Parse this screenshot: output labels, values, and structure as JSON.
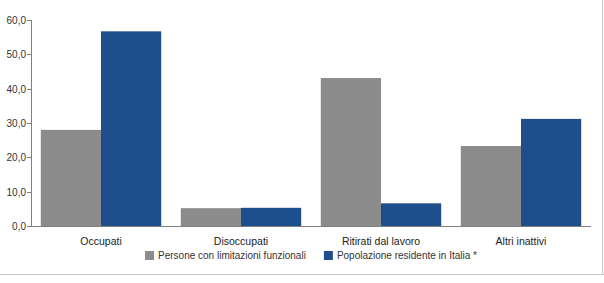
{
  "chart_data": {
    "type": "bar",
    "categories": [
      "Occupati",
      "Disoccupati",
      "Ritirati dal lavoro",
      "Altri inattivi"
    ],
    "series": [
      {
        "name": "Persone con limitazioni funzionali",
        "color": "#8c8c8c",
        "values": [
          28.0,
          5.2,
          43.1,
          23.3
        ]
      },
      {
        "name": "Popolazione residente in Italia *",
        "color": "#1f4e8c",
        "values": [
          56.7,
          5.3,
          6.6,
          31.2
        ]
      }
    ],
    "ylim": [
      0,
      60
    ],
    "yticks": [
      {
        "value": 0,
        "label": "0,0"
      },
      {
        "value": 10,
        "label": "10,0"
      },
      {
        "value": 20,
        "label": "20,0"
      },
      {
        "value": 30,
        "label": "30,0"
      },
      {
        "value": 40,
        "label": "40,0"
      },
      {
        "value": 50,
        "label": "50,0"
      },
      {
        "value": 60,
        "label": "60,0"
      }
    ],
    "grid": false,
    "legend": "bottom"
  }
}
